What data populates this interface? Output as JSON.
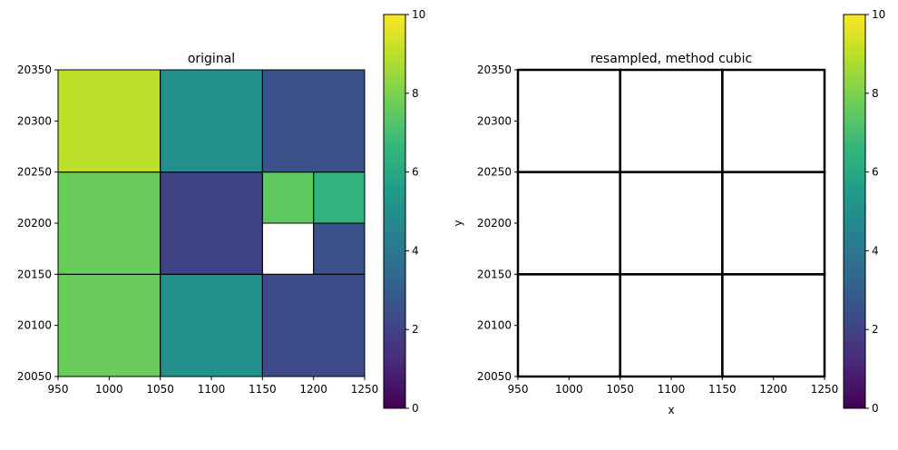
{
  "colorbar": {
    "ticks": [
      0,
      2,
      4,
      6,
      8,
      10
    ],
    "range": [
      0,
      10
    ],
    "colormap_stops": [
      "#440154",
      "#482878",
      "#3e4989",
      "#31688e",
      "#26828e",
      "#1f9e89",
      "#35b779",
      "#6ece58",
      "#b5de2b",
      "#fde725"
    ]
  },
  "chart_data": [
    {
      "type": "heatmap",
      "title": "original",
      "xlabel": "",
      "ylabel": "",
      "xlim": [
        950,
        1250
      ],
      "ylim": [
        20050,
        20350
      ],
      "xticks": [
        950,
        1000,
        1050,
        1100,
        1150,
        1200,
        1250
      ],
      "yticks": [
        20050,
        20100,
        20150,
        20200,
        20250,
        20300,
        20350
      ],
      "color_range": [
        0,
        10
      ],
      "cells": [
        {
          "x0": 950,
          "x1": 1050,
          "y0": 20250,
          "y1": 20350,
          "value": 9
        },
        {
          "x0": 1050,
          "x1": 1150,
          "y0": 20250,
          "y1": 20350,
          "value": 5
        },
        {
          "x0": 1150,
          "x1": 1250,
          "y0": 20250,
          "y1": 20350,
          "value": 2.5
        },
        {
          "x0": 950,
          "x1": 1050,
          "y0": 20150,
          "y1": 20250,
          "value": 7.7
        },
        {
          "x0": 1050,
          "x1": 1150,
          "y0": 20150,
          "y1": 20250,
          "value": 2
        },
        {
          "x0": 1150,
          "x1": 1200,
          "y0": 20200,
          "y1": 20250,
          "value": 7.5
        },
        {
          "x0": 1200,
          "x1": 1250,
          "y0": 20200,
          "y1": 20250,
          "value": 6.5
        },
        {
          "x0": 1150,
          "x1": 1200,
          "y0": 20150,
          "y1": 20200,
          "value": null
        },
        {
          "x0": 1200,
          "x1": 1250,
          "y0": 20150,
          "y1": 20200,
          "value": 2.5
        },
        {
          "x0": 950,
          "x1": 1050,
          "y0": 20050,
          "y1": 20150,
          "value": 7.7
        },
        {
          "x0": 1050,
          "x1": 1150,
          "y0": 20050,
          "y1": 20150,
          "value": 5
        },
        {
          "x0": 1150,
          "x1": 1250,
          "y0": 20050,
          "y1": 20150,
          "value": 2.3
        }
      ]
    },
    {
      "type": "heatmap",
      "title": "resampled, method cubic",
      "xlabel": "x",
      "ylabel": "y",
      "xlim": [
        950,
        1250
      ],
      "ylim": [
        20050,
        20350
      ],
      "xticks": [
        950,
        1000,
        1050,
        1100,
        1150,
        1200,
        1250
      ],
      "yticks": [
        20050,
        20100,
        20150,
        20200,
        20250,
        20300,
        20350
      ],
      "color_range": [
        0,
        10
      ],
      "cells": [
        {
          "x0": 950,
          "x1": 1050,
          "y0": 20250,
          "y1": 20350,
          "value": null
        },
        {
          "x0": 1050,
          "x1": 1150,
          "y0": 20250,
          "y1": 20350,
          "value": null
        },
        {
          "x0": 1150,
          "x1": 1250,
          "y0": 20250,
          "y1": 20350,
          "value": null
        },
        {
          "x0": 950,
          "x1": 1050,
          "y0": 20150,
          "y1": 20250,
          "value": null
        },
        {
          "x0": 1050,
          "x1": 1150,
          "y0": 20150,
          "y1": 20250,
          "value": null
        },
        {
          "x0": 1150,
          "x1": 1250,
          "y0": 20150,
          "y1": 20250,
          "value": null
        },
        {
          "x0": 950,
          "x1": 1050,
          "y0": 20050,
          "y1": 20150,
          "value": null
        },
        {
          "x0": 1050,
          "x1": 1150,
          "y0": 20050,
          "y1": 20150,
          "value": null
        },
        {
          "x0": 1150,
          "x1": 1250,
          "y0": 20050,
          "y1": 20150,
          "value": null
        }
      ]
    }
  ]
}
